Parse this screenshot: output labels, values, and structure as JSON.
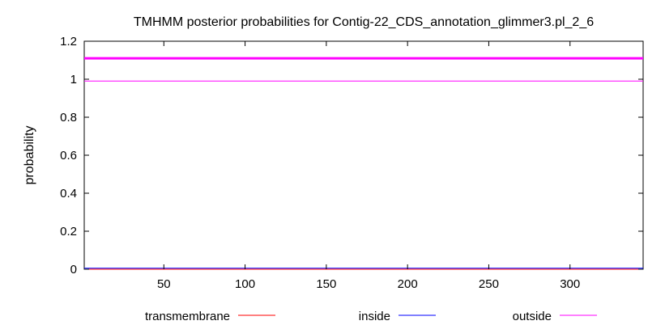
{
  "chart_data": {
    "type": "line",
    "title": "TMHMM posterior probabilities for Contig-22_CDS_annotation_glimmer3.pl_2_6",
    "xlabel": "",
    "ylabel": "probability",
    "xlim": [
      1,
      345
    ],
    "ylim": [
      0,
      1.2
    ],
    "x_ticks": [
      50,
      100,
      150,
      200,
      250,
      300
    ],
    "y_ticks": [
      0,
      0.2,
      0.4,
      0.6,
      0.8,
      1,
      1.2
    ],
    "y_tick_labels": [
      "0",
      "0.2",
      "0.4",
      "0.6",
      "0.8",
      "1",
      "1.2"
    ],
    "grid": false,
    "legend_position": "bottom",
    "series": [
      {
        "name": "transmembrane",
        "color": "#ff0000",
        "x": [
          1,
          345
        ],
        "y": [
          0,
          0
        ]
      },
      {
        "name": "inside",
        "color": "#0000ff",
        "x": [
          1,
          345
        ],
        "y": [
          0.005,
          0.005
        ]
      },
      {
        "name": "outside",
        "color": "#ff00ff",
        "x": [
          1,
          345
        ],
        "y": [
          0.99,
          0.99
        ]
      }
    ],
    "annotations": [
      {
        "type": "hline",
        "y": 1.11,
        "color": "#ff00ff",
        "style": "thick"
      }
    ]
  }
}
